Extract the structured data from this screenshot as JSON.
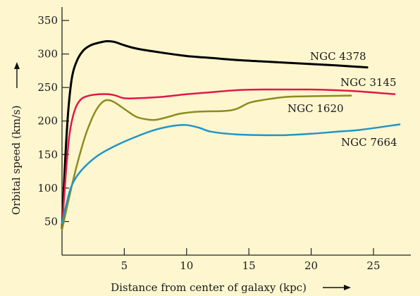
{
  "chart_data": {
    "type": "line",
    "title": "",
    "xlabel": "Distance from center of  galaxy (kpc)",
    "ylabel": "Orbital speed (km/s)",
    "xlim": [
      0,
      28
    ],
    "ylim": [
      0,
      370
    ],
    "x_ticks": [
      5,
      10,
      15,
      20,
      25
    ],
    "y_ticks": [
      50,
      100,
      150,
      200,
      250,
      300,
      350
    ],
    "grid": false,
    "legend": "inline labels",
    "series": [
      {
        "name": "NGC 4378",
        "color": "#000000",
        "points": [
          [
            0,
            40
          ],
          [
            0.25,
            140
          ],
          [
            0.5,
            215
          ],
          [
            0.8,
            265
          ],
          [
            1.2,
            290
          ],
          [
            1.7,
            305
          ],
          [
            2.3,
            313
          ],
          [
            3,
            317
          ],
          [
            3.6,
            319
          ],
          [
            4.2,
            318
          ],
          [
            5,
            313
          ],
          [
            6,
            308
          ],
          [
            8,
            302
          ],
          [
            10,
            297
          ],
          [
            12,
            294
          ],
          [
            14,
            291
          ],
          [
            16,
            289
          ],
          [
            18,
            287
          ],
          [
            20,
            285
          ],
          [
            22,
            283
          ],
          [
            24.5,
            280
          ]
        ]
      },
      {
        "name": "NGC 3145",
        "color": "#e0184a",
        "points": [
          [
            0,
            40
          ],
          [
            0.3,
            120
          ],
          [
            0.6,
            180
          ],
          [
            1,
            215
          ],
          [
            1.5,
            232
          ],
          [
            2.2,
            238
          ],
          [
            3,
            240
          ],
          [
            3.7,
            240
          ],
          [
            4.3,
            238
          ],
          [
            5,
            234
          ],
          [
            6,
            234
          ],
          [
            8,
            236
          ],
          [
            10,
            240
          ],
          [
            12,
            243
          ],
          [
            14,
            246
          ],
          [
            16,
            247
          ],
          [
            18,
            247
          ],
          [
            20,
            247
          ],
          [
            22,
            246
          ],
          [
            24,
            244
          ],
          [
            26.7,
            240
          ]
        ]
      },
      {
        "name": "NGC 1620",
        "color": "#8c8c1e",
        "points": [
          [
            0,
            38
          ],
          [
            0.5,
            80
          ],
          [
            1,
            120
          ],
          [
            1.5,
            155
          ],
          [
            2,
            185
          ],
          [
            2.7,
            215
          ],
          [
            3.3,
            229
          ],
          [
            3.8,
            231
          ],
          [
            4.3,
            227
          ],
          [
            5,
            218
          ],
          [
            6,
            206
          ],
          [
            7,
            202
          ],
          [
            7.6,
            202
          ],
          [
            8.5,
            206
          ],
          [
            9.5,
            211
          ],
          [
            11,
            214
          ],
          [
            13,
            215
          ],
          [
            14,
            218
          ],
          [
            15,
            227
          ],
          [
            16,
            231
          ],
          [
            18,
            236
          ],
          [
            20,
            237
          ],
          [
            23.2,
            238
          ]
        ]
      },
      {
        "name": "NGC 7664",
        "color": "#1e96c8",
        "points": [
          [
            0,
            48
          ],
          [
            0.3,
            72
          ],
          [
            0.7,
            100
          ],
          [
            1.2,
            118
          ],
          [
            2,
            135
          ],
          [
            3,
            150
          ],
          [
            4.5,
            165
          ],
          [
            6,
            177
          ],
          [
            7.5,
            187
          ],
          [
            9,
            193
          ],
          [
            10,
            194
          ],
          [
            11,
            190
          ],
          [
            12,
            184
          ],
          [
            14,
            180
          ],
          [
            16,
            179
          ],
          [
            18,
            179
          ],
          [
            20,
            181
          ],
          [
            22,
            184
          ],
          [
            24,
            187
          ],
          [
            27.1,
            195
          ]
        ]
      }
    ],
    "series_label_positions": [
      "NGC 4378",
      "NGC 3145",
      "NGC 1620",
      "NGC 7664"
    ]
  }
}
